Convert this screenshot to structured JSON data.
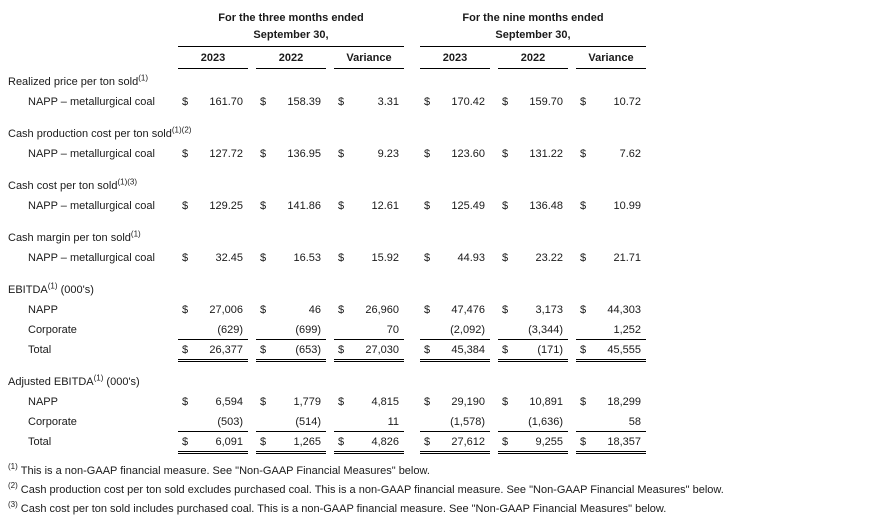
{
  "table": {
    "groups": [
      {
        "line1": "For the three months ended",
        "line2": "September 30,"
      },
      {
        "line1": "For the nine months ended",
        "line2": "September 30,"
      }
    ],
    "columns": [
      "2023",
      "2022",
      "Variance",
      "2023",
      "2022",
      "Variance"
    ],
    "sections": [
      {
        "title": {
          "text": "Realized price per ton sold",
          "sup": "(1)",
          "suffix": ""
        },
        "rows": [
          {
            "label": "NAPP – metallurgical coal",
            "indent": true,
            "underline": "none",
            "cells": [
              {
                "d": "$",
                "v": "161.70"
              },
              {
                "d": "$",
                "v": "158.39"
              },
              {
                "d": "$",
                "v": "3.31"
              },
              {
                "d": "$",
                "v": "170.42"
              },
              {
                "d": "$",
                "v": "159.70"
              },
              {
                "d": "$",
                "v": "10.72"
              }
            ]
          }
        ]
      },
      {
        "title": {
          "text": "Cash production cost per ton sold",
          "sup": "(1)(2)",
          "suffix": ""
        },
        "rows": [
          {
            "label": "NAPP – metallurgical coal",
            "indent": true,
            "underline": "none",
            "cells": [
              {
                "d": "$",
                "v": "127.72"
              },
              {
                "d": "$",
                "v": "136.95"
              },
              {
                "d": "$",
                "v": "9.23"
              },
              {
                "d": "$",
                "v": "123.60"
              },
              {
                "d": "$",
                "v": "131.22"
              },
              {
                "d": "$",
                "v": "7.62"
              }
            ]
          }
        ]
      },
      {
        "title": {
          "text": "Cash cost per ton sold",
          "sup": "(1)(3)",
          "suffix": ""
        },
        "rows": [
          {
            "label": "NAPP – metallurgical coal",
            "indent": true,
            "underline": "none",
            "cells": [
              {
                "d": "$",
                "v": "129.25"
              },
              {
                "d": "$",
                "v": "141.86"
              },
              {
                "d": "$",
                "v": "12.61"
              },
              {
                "d": "$",
                "v": "125.49"
              },
              {
                "d": "$",
                "v": "136.48"
              },
              {
                "d": "$",
                "v": "10.99"
              }
            ]
          }
        ]
      },
      {
        "title": {
          "text": "Cash margin per ton sold",
          "sup": "(1)",
          "suffix": ""
        },
        "rows": [
          {
            "label": "NAPP – metallurgical coal",
            "indent": true,
            "underline": "none",
            "cells": [
              {
                "d": "$",
                "v": "32.45"
              },
              {
                "d": "$",
                "v": "16.53"
              },
              {
                "d": "$",
                "v": "15.92"
              },
              {
                "d": "$",
                "v": "44.93"
              },
              {
                "d": "$",
                "v": "23.22"
              },
              {
                "d": "$",
                "v": "21.71"
              }
            ]
          }
        ]
      },
      {
        "title": {
          "text": "EBITDA",
          "sup": "(1)",
          "suffix": " (000's)"
        },
        "rows": [
          {
            "label": "NAPP",
            "indent": true,
            "underline": "none",
            "cells": [
              {
                "d": "$",
                "v": "27,006"
              },
              {
                "d": "$",
                "v": "46"
              },
              {
                "d": "$",
                "v": "26,960"
              },
              {
                "d": "$",
                "v": "47,476"
              },
              {
                "d": "$",
                "v": "3,173"
              },
              {
                "d": "$",
                "v": "44,303"
              }
            ]
          },
          {
            "label": "Corporate",
            "indent": true,
            "underline": "single",
            "cells": [
              {
                "d": "",
                "v": "(629)"
              },
              {
                "d": "",
                "v": "(699)"
              },
              {
                "d": "",
                "v": "70"
              },
              {
                "d": "",
                "v": "(2,092)"
              },
              {
                "d": "",
                "v": "(3,344)"
              },
              {
                "d": "",
                "v": "1,252"
              }
            ]
          },
          {
            "label": "Total",
            "indent": true,
            "underline": "double",
            "cells": [
              {
                "d": "$",
                "v": "26,377"
              },
              {
                "d": "$",
                "v": "(653)"
              },
              {
                "d": "$",
                "v": "27,030"
              },
              {
                "d": "$",
                "v": "45,384"
              },
              {
                "d": "$",
                "v": "(171)"
              },
              {
                "d": "$",
                "v": "45,555"
              }
            ]
          }
        ]
      },
      {
        "title": {
          "text": "Adjusted EBITDA",
          "sup": "(1)",
          "suffix": " (000's)"
        },
        "rows": [
          {
            "label": "NAPP",
            "indent": true,
            "underline": "none",
            "cells": [
              {
                "d": "$",
                "v": "6,594"
              },
              {
                "d": "$",
                "v": "1,779"
              },
              {
                "d": "$",
                "v": "4,815"
              },
              {
                "d": "$",
                "v": "29,190"
              },
              {
                "d": "$",
                "v": "10,891"
              },
              {
                "d": "$",
                "v": "18,299"
              }
            ]
          },
          {
            "label": "Corporate",
            "indent": true,
            "underline": "single",
            "cells": [
              {
                "d": "",
                "v": "(503)"
              },
              {
                "d": "",
                "v": "(514)"
              },
              {
                "d": "",
                "v": "11"
              },
              {
                "d": "",
                "v": "(1,578)"
              },
              {
                "d": "",
                "v": "(1,636)"
              },
              {
                "d": "",
                "v": "58"
              }
            ]
          },
          {
            "label": "Total",
            "indent": true,
            "underline": "double",
            "cells": [
              {
                "d": "$",
                "v": "6,091"
              },
              {
                "d": "$",
                "v": "1,265"
              },
              {
                "d": "$",
                "v": "4,826"
              },
              {
                "d": "$",
                "v": "27,612"
              },
              {
                "d": "$",
                "v": "9,255"
              },
              {
                "d": "$",
                "v": "18,357"
              }
            ]
          }
        ]
      }
    ],
    "footnotes": [
      {
        "sup": "(1)",
        "text": "This is a non-GAAP financial measure.  See \"Non-GAAP Financial Measures\" below."
      },
      {
        "sup": "(2)",
        "text": "Cash production cost per ton sold excludes purchased coal.  This is a non-GAAP financial measure.  See \"Non-GAAP Financial Measures\" below."
      },
      {
        "sup": "(3)",
        "text": "Cash cost per ton sold includes purchased coal.  This is a non-GAAP financial measure.  See \"Non-GAAP Financial Measures\" below."
      }
    ]
  }
}
